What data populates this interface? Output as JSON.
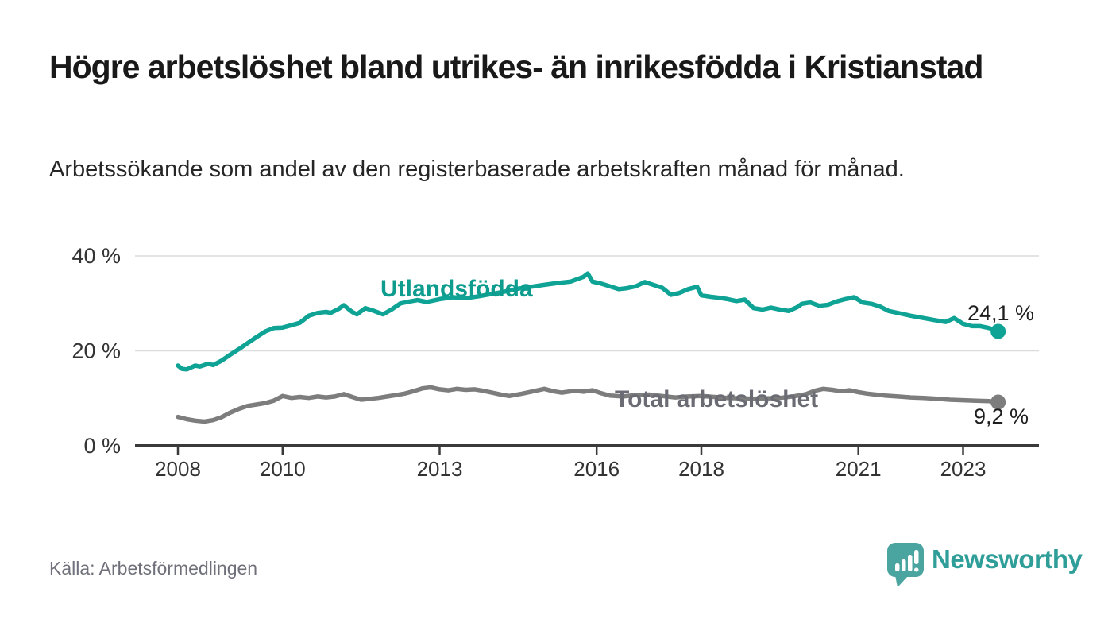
{
  "header": {
    "title": "Högre arbetslöshet bland utrikes- än inrikesfödda i Kristianstad",
    "subtitle": "Arbetssökande som andel av den registerbaserade arbetskraften månad för månad."
  },
  "footer": {
    "source": "Källa: Arbetsförmedlingen",
    "brand": "Newsworthy"
  },
  "colors": {
    "foreign_born_line": "#0ea394",
    "foreign_born_label": "#0d9c8d",
    "total_line": "#7d7d7d",
    "total_label": "#6b6b74",
    "axis": "#3a3a3a",
    "gridline": "#dcdcdc",
    "tick_label": "#333333",
    "value_label": "#1e1e1e",
    "brand_teal": "#4aa4a0"
  },
  "chart_data": {
    "type": "line",
    "title": "Högre arbetslöshet bland utrikes- än inrikesfödda i Kristianstad",
    "xlabel": "",
    "ylabel": "",
    "x_unit": "year (monthly series)",
    "y_unit": "percent",
    "xlim": [
      2007.2,
      2024.4
    ],
    "ylim": [
      0,
      42
    ],
    "grid": "horizontal",
    "legend": "inline-labels",
    "x_ticks": [
      2008,
      2010,
      2013,
      2016,
      2018,
      2021,
      2023
    ],
    "y_ticks": [
      {
        "value": 0,
        "label": "0 %"
      },
      {
        "value": 20,
        "label": "20 %"
      },
      {
        "value": 40,
        "label": "40 %"
      }
    ],
    "series": [
      {
        "name": "Utlandsfödda",
        "end_label": "24,1 %",
        "end_value": 24.1,
        "points": [
          [
            2008.0,
            16.9
          ],
          [
            2008.08,
            16.2
          ],
          [
            2008.17,
            16.1
          ],
          [
            2008.33,
            16.9
          ],
          [
            2008.42,
            16.7
          ],
          [
            2008.58,
            17.3
          ],
          [
            2008.67,
            17.0
          ],
          [
            2008.83,
            17.9
          ],
          [
            2009.0,
            19.2
          ],
          [
            2009.17,
            20.4
          ],
          [
            2009.33,
            21.6
          ],
          [
            2009.5,
            22.9
          ],
          [
            2009.67,
            24.1
          ],
          [
            2009.83,
            24.8
          ],
          [
            2010.0,
            24.9
          ],
          [
            2010.17,
            25.4
          ],
          [
            2010.33,
            25.9
          ],
          [
            2010.5,
            27.4
          ],
          [
            2010.67,
            28.0
          ],
          [
            2010.83,
            28.2
          ],
          [
            2010.92,
            28.0
          ],
          [
            2011.08,
            28.9
          ],
          [
            2011.17,
            29.6
          ],
          [
            2011.33,
            28.2
          ],
          [
            2011.42,
            27.7
          ],
          [
            2011.58,
            29.0
          ],
          [
            2011.75,
            28.4
          ],
          [
            2011.92,
            27.7
          ],
          [
            2012.08,
            28.7
          ],
          [
            2012.25,
            30.0
          ],
          [
            2012.42,
            30.4
          ],
          [
            2012.58,
            30.7
          ],
          [
            2012.75,
            30.3
          ],
          [
            2013.0,
            30.9
          ],
          [
            2013.25,
            31.3
          ],
          [
            2013.5,
            31.1
          ],
          [
            2013.75,
            31.5
          ],
          [
            2014.0,
            32.0
          ],
          [
            2014.25,
            32.5
          ],
          [
            2014.5,
            33.1
          ],
          [
            2014.75,
            33.5
          ],
          [
            2015.0,
            33.9
          ],
          [
            2015.25,
            34.3
          ],
          [
            2015.5,
            34.6
          ],
          [
            2015.75,
            35.6
          ],
          [
            2015.83,
            36.3
          ],
          [
            2015.92,
            34.6
          ],
          [
            2016.08,
            34.2
          ],
          [
            2016.25,
            33.6
          ],
          [
            2016.42,
            33.0
          ],
          [
            2016.58,
            33.2
          ],
          [
            2016.75,
            33.6
          ],
          [
            2016.92,
            34.5
          ],
          [
            2017.08,
            33.9
          ],
          [
            2017.25,
            33.3
          ],
          [
            2017.42,
            31.8
          ],
          [
            2017.58,
            32.2
          ],
          [
            2017.75,
            33.0
          ],
          [
            2017.92,
            33.5
          ],
          [
            2018.0,
            31.7
          ],
          [
            2018.17,
            31.4
          ],
          [
            2018.33,
            31.2
          ],
          [
            2018.5,
            30.9
          ],
          [
            2018.67,
            30.5
          ],
          [
            2018.83,
            30.8
          ],
          [
            2019.0,
            29.0
          ],
          [
            2019.17,
            28.7
          ],
          [
            2019.33,
            29.1
          ],
          [
            2019.5,
            28.7
          ],
          [
            2019.67,
            28.4
          ],
          [
            2019.83,
            29.2
          ],
          [
            2019.92,
            29.9
          ],
          [
            2020.08,
            30.2
          ],
          [
            2020.25,
            29.5
          ],
          [
            2020.42,
            29.7
          ],
          [
            2020.58,
            30.4
          ],
          [
            2020.75,
            30.9
          ],
          [
            2020.92,
            31.3
          ],
          [
            2021.08,
            30.2
          ],
          [
            2021.25,
            29.9
          ],
          [
            2021.42,
            29.3
          ],
          [
            2021.58,
            28.4
          ],
          [
            2021.75,
            28.0
          ],
          [
            2022.0,
            27.4
          ],
          [
            2022.25,
            26.9
          ],
          [
            2022.5,
            26.4
          ],
          [
            2022.67,
            26.1
          ],
          [
            2022.83,
            26.9
          ],
          [
            2023.0,
            25.7
          ],
          [
            2023.17,
            25.2
          ],
          [
            2023.33,
            25.2
          ],
          [
            2023.5,
            24.8
          ],
          [
            2023.67,
            24.1
          ]
        ]
      },
      {
        "name": "Total arbetslöshet",
        "end_label": "9,2 %",
        "end_value": 9.2,
        "points": [
          [
            2008.0,
            6.1
          ],
          [
            2008.17,
            5.6
          ],
          [
            2008.33,
            5.3
          ],
          [
            2008.5,
            5.1
          ],
          [
            2008.67,
            5.4
          ],
          [
            2008.83,
            6.0
          ],
          [
            2009.0,
            7.0
          ],
          [
            2009.17,
            7.8
          ],
          [
            2009.33,
            8.4
          ],
          [
            2009.5,
            8.7
          ],
          [
            2009.67,
            9.0
          ],
          [
            2009.83,
            9.5
          ],
          [
            2010.0,
            10.5
          ],
          [
            2010.17,
            10.1
          ],
          [
            2010.33,
            10.3
          ],
          [
            2010.5,
            10.1
          ],
          [
            2010.67,
            10.4
          ],
          [
            2010.83,
            10.2
          ],
          [
            2011.0,
            10.4
          ],
          [
            2011.17,
            10.9
          ],
          [
            2011.33,
            10.3
          ],
          [
            2011.5,
            9.7
          ],
          [
            2011.67,
            9.9
          ],
          [
            2011.83,
            10.1
          ],
          [
            2012.0,
            10.4
          ],
          [
            2012.17,
            10.7
          ],
          [
            2012.33,
            11.0
          ],
          [
            2012.5,
            11.5
          ],
          [
            2012.67,
            12.1
          ],
          [
            2012.83,
            12.3
          ],
          [
            2013.0,
            11.9
          ],
          [
            2013.17,
            11.7
          ],
          [
            2013.33,
            12.0
          ],
          [
            2013.5,
            11.8
          ],
          [
            2013.67,
            11.9
          ],
          [
            2013.83,
            11.6
          ],
          [
            2014.0,
            11.2
          ],
          [
            2014.17,
            10.8
          ],
          [
            2014.33,
            10.5
          ],
          [
            2014.58,
            11.0
          ],
          [
            2014.75,
            11.4
          ],
          [
            2015.0,
            12.0
          ],
          [
            2015.17,
            11.5
          ],
          [
            2015.33,
            11.2
          ],
          [
            2015.58,
            11.6
          ],
          [
            2015.75,
            11.4
          ],
          [
            2015.92,
            11.7
          ],
          [
            2016.08,
            11.1
          ],
          [
            2016.25,
            10.6
          ],
          [
            2016.5,
            10.4
          ],
          [
            2016.75,
            10.7
          ],
          [
            2017.0,
            10.8
          ],
          [
            2017.25,
            10.5
          ],
          [
            2017.5,
            10.2
          ],
          [
            2017.75,
            10.4
          ],
          [
            2018.0,
            10.5
          ],
          [
            2018.25,
            10.3
          ],
          [
            2018.5,
            10.1
          ],
          [
            2018.75,
            10.0
          ],
          [
            2019.0,
            9.9
          ],
          [
            2019.25,
            10.0
          ],
          [
            2019.5,
            10.1
          ],
          [
            2019.75,
            10.4
          ],
          [
            2020.0,
            10.9
          ],
          [
            2020.17,
            11.6
          ],
          [
            2020.33,
            12.0
          ],
          [
            2020.5,
            11.8
          ],
          [
            2020.67,
            11.5
          ],
          [
            2020.83,
            11.7
          ],
          [
            2021.0,
            11.3
          ],
          [
            2021.17,
            11.0
          ],
          [
            2021.33,
            10.8
          ],
          [
            2021.5,
            10.6
          ],
          [
            2021.75,
            10.4
          ],
          [
            2022.0,
            10.2
          ],
          [
            2022.25,
            10.1
          ],
          [
            2022.5,
            9.9
          ],
          [
            2022.75,
            9.7
          ],
          [
            2023.0,
            9.6
          ],
          [
            2023.25,
            9.5
          ],
          [
            2023.5,
            9.4
          ],
          [
            2023.67,
            9.2
          ]
        ]
      }
    ]
  }
}
